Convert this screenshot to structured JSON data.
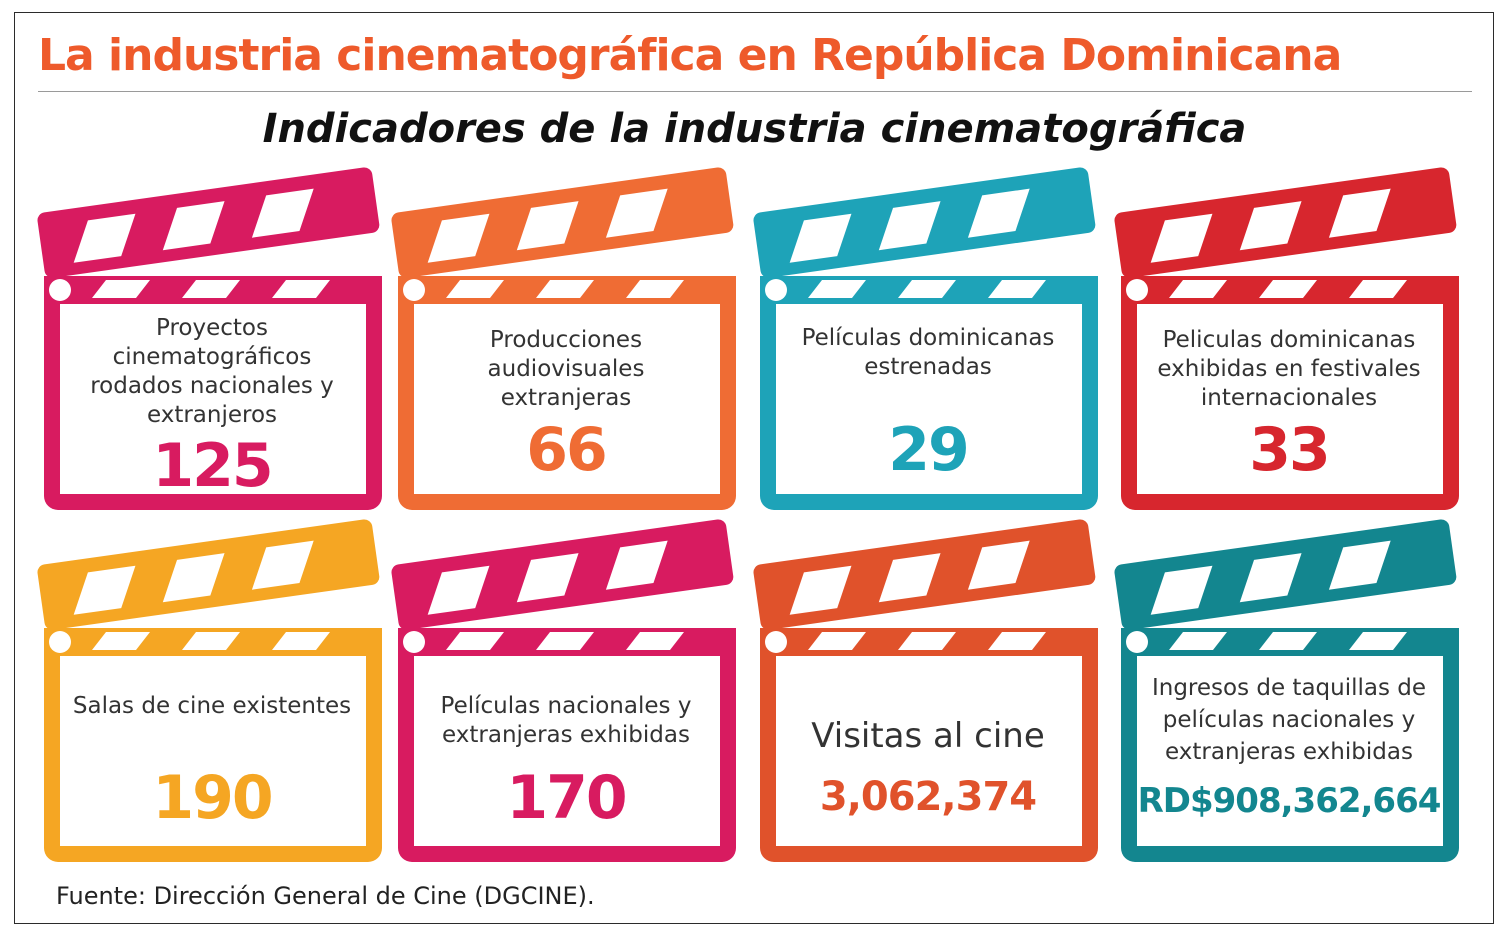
{
  "title": "La industria cinematográfica en República Dominicana",
  "subtitle": "Indicadores de la industria cinematográfica",
  "source": "Fuente: Dirección General de Cine (DGCINE).",
  "colors": {
    "title": "#ee5a2b",
    "magenta": "#d81b60",
    "orange": "#ef6c34",
    "teal": "#1ea3b8",
    "red": "#d7262e",
    "amber": "#f5a623",
    "orange_red": "#e0522b",
    "dark_teal": "#13868f"
  },
  "indicators": [
    {
      "label": "Proyectos cinematográficos rodados nacionales y extranjeros",
      "value": "125",
      "color": "#d81b60"
    },
    {
      "label": "Producciones audiovisuales extranjeras",
      "value": "66",
      "color": "#ef6c34"
    },
    {
      "label": "Películas dominicanas estrenadas",
      "value": "29",
      "color": "#1ea3b8"
    },
    {
      "label": "Peliculas dominicanas exhibidas en festivales internacionales",
      "value": "33",
      "color": "#d7262e"
    },
    {
      "label": "Salas de cine existentes",
      "value": "190",
      "color": "#f5a623"
    },
    {
      "label": "Películas nacionales y extranjeras exhibidas",
      "value": "170",
      "color": "#d81b60"
    },
    {
      "label": "Visitas al cine",
      "value": "3,062,374",
      "color": "#e0522b"
    },
    {
      "label": "Ingresos de taquillas de películas nacionales y extranjeras exhibidas",
      "value": "RD$908,362,664",
      "color": "#13868f"
    }
  ]
}
